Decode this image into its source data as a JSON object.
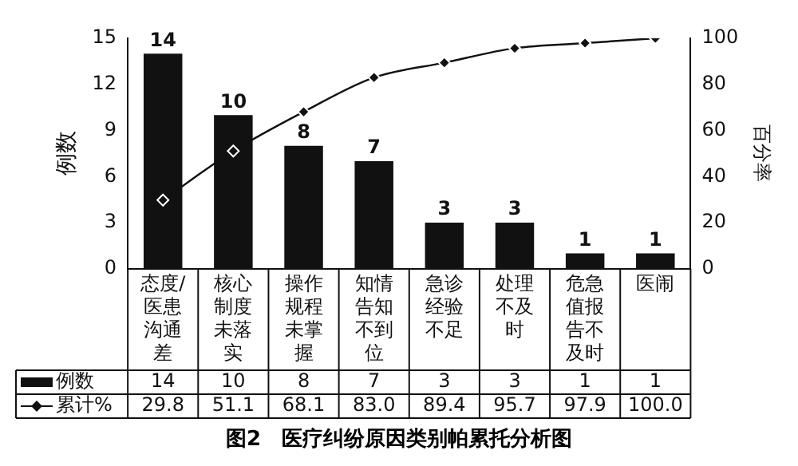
{
  "chart_data": {
    "type": "bar",
    "title": "图2　医疗纠纷原因类别帕累托分析图",
    "ylabel": "例数",
    "y2label": "百分率",
    "categories": [
      "态度/医患沟通差",
      "核心制度未落实",
      "操作规程未掌握",
      "知情告知不到位",
      "急诊经验不足",
      "处理不及时",
      "危急值报告不及时",
      "医闹"
    ],
    "series": [
      {
        "name": "例数",
        "color": "#111111",
        "values": [
          14,
          10,
          8,
          7,
          3,
          3,
          1,
          1
        ],
        "value_labels": [
          "14",
          "10",
          "8",
          "7",
          "3",
          "3",
          "1",
          "1"
        ]
      },
      {
        "name": "累计%",
        "type": "line",
        "axis": "y2",
        "color": "#111111",
        "marker": "diamond",
        "values": [
          29.8,
          51.1,
          68.1,
          83.0,
          89.4,
          95.7,
          97.9,
          100.0
        ],
        "value_labels": [
          "29.8",
          "51.1",
          "68.1",
          "83.0",
          "89.4",
          "95.7",
          "97.9",
          "100.0"
        ]
      }
    ],
    "ylim": [
      0,
      15
    ],
    "yticks": [
      0,
      3,
      6,
      9,
      12,
      15
    ],
    "y2lim": [
      0,
      100
    ],
    "y2ticks": [
      0,
      20,
      40,
      60,
      80,
      100
    ],
    "grid": false,
    "legend": "bottom left"
  }
}
